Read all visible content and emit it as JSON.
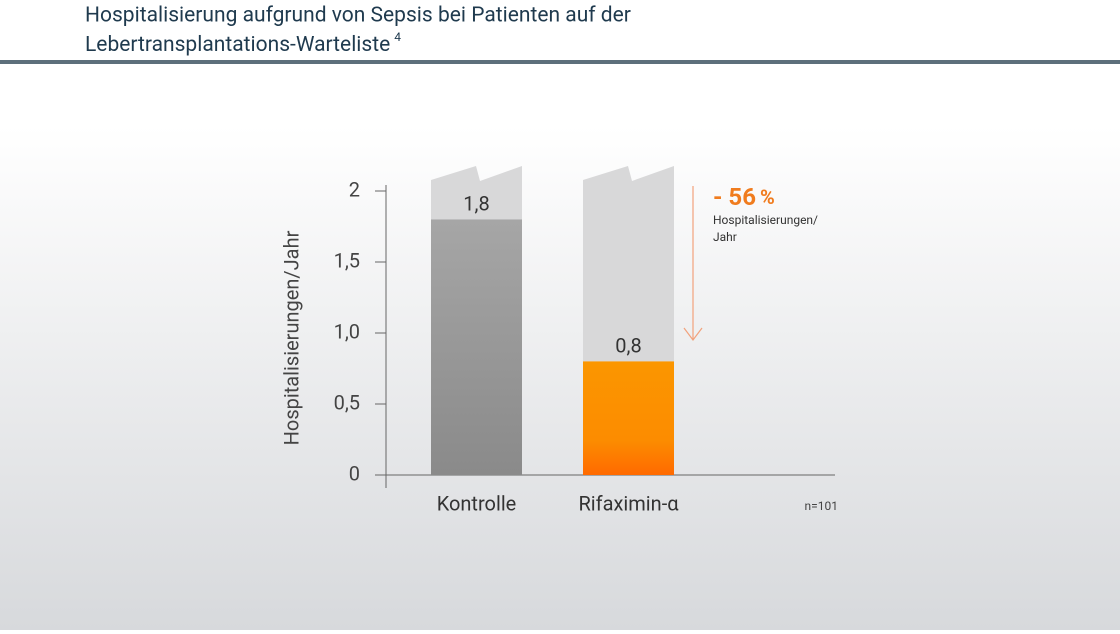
{
  "chart_data": {
    "type": "bar",
    "title_line1": "Hospitalisierung aufgrund von Sepsis bei Patienten auf der",
    "title_line2": "Lebertransplantations-Warteliste",
    "title_ref": "4",
    "y_label": "Hospitalisierungen/Jahr",
    "categories": [
      "Kontrolle",
      "Rifaximin-α"
    ],
    "values": [
      1.8,
      0.8
    ],
    "value_labels": [
      "1,8",
      "0,8"
    ],
    "colors": [
      "#9a9a9a",
      "#fb8a00"
    ],
    "ylim": [
      0,
      2
    ],
    "yticks": [
      0,
      {
        "value": 0.5,
        "label": "0,5"
      },
      {
        "value": 1.0,
        "label": "1,0"
      },
      {
        "value": 1.5,
        "label": "1,5"
      },
      2
    ],
    "annotation_value": "- 56",
    "annotation_unit": "%",
    "annotation_line1": "Hospitalisierungen/",
    "annotation_line2": "Jahr",
    "note": "n=101"
  }
}
